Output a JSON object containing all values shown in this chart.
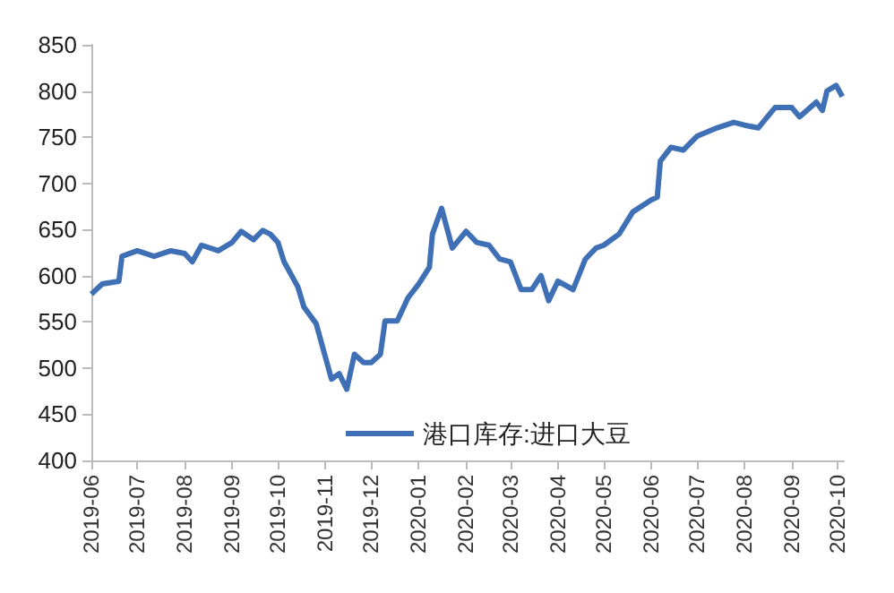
{
  "chart_data": {
    "type": "line",
    "x": [
      "2019-06-01",
      "2019-06-08",
      "2019-06-19",
      "2019-06-21",
      "2019-07-01",
      "2019-07-12",
      "2019-07-23",
      "2019-08-01",
      "2019-08-06",
      "2019-08-12",
      "2019-08-23",
      "2019-09-01",
      "2019-09-07",
      "2019-09-15",
      "2019-09-21",
      "2019-09-26",
      "2019-10-01",
      "2019-10-05",
      "2019-10-11",
      "2019-10-14",
      "2019-10-18",
      "2019-10-26",
      "2019-11-01",
      "2019-11-05",
      "2019-11-10",
      "2019-11-15",
      "2019-11-20",
      "2019-11-26",
      "2019-12-01",
      "2019-12-07",
      "2019-12-10",
      "2019-12-18",
      "2019-12-25",
      "2020-01-01",
      "2020-01-08",
      "2020-01-10",
      "2020-01-16",
      "2020-01-23",
      "2020-02-01",
      "2020-02-08",
      "2020-02-16",
      "2020-02-23",
      "2020-03-01",
      "2020-03-08",
      "2020-03-15",
      "2020-03-21",
      "2020-03-26",
      "2020-04-01",
      "2020-04-11",
      "2020-04-19",
      "2020-04-26",
      "2020-05-01",
      "2020-05-11",
      "2020-05-20",
      "2020-06-01",
      "2020-06-05",
      "2020-06-07",
      "2020-06-14",
      "2020-06-22",
      "2020-07-01",
      "2020-07-14",
      "2020-07-25",
      "2020-08-01",
      "2020-08-10",
      "2020-08-21",
      "2020-09-01",
      "2020-09-06",
      "2020-09-17",
      "2020-09-21",
      "2020-09-24",
      "2020-09-30",
      "2020-10-04"
    ],
    "series": [
      {
        "name": "港口库存:进口大豆",
        "color": "#3f6fb5",
        "values": [
          580,
          591,
          594,
          621,
          627,
          621,
          627,
          624,
          615,
          633,
          627,
          636,
          648,
          639,
          649,
          645,
          636,
          615,
          597,
          588,
          566,
          548,
          512,
          488,
          494,
          477,
          515,
          506,
          506,
          515,
          551,
          551,
          576,
          591,
          609,
          645,
          673,
          630,
          648,
          636,
          633,
          618,
          615,
          585,
          585,
          600,
          573,
          594,
          585,
          618,
          630,
          633,
          645,
          669,
          682,
          685,
          724,
          739,
          736,
          751,
          760,
          766,
          763,
          760,
          782,
          782,
          772,
          788,
          779,
          800,
          806,
          794
        ]
      }
    ],
    "xlim": [
      "2019-06-01",
      "2020-10-05"
    ],
    "xticks": [
      {
        "value": "2019-06",
        "label": "2019-06"
      },
      {
        "value": "2019-07",
        "label": "2019-07"
      },
      {
        "value": "2019-08",
        "label": "2019-08"
      },
      {
        "value": "2019-09",
        "label": "2019-09"
      },
      {
        "value": "2019-10",
        "label": "2019-10"
      },
      {
        "value": "2019-11",
        "label": "2019-11"
      },
      {
        "value": "2019-12",
        "label": "2019-12"
      },
      {
        "value": "2020-01",
        "label": "2020-01"
      },
      {
        "value": "2020-02",
        "label": "2020-02"
      },
      {
        "value": "2020-03",
        "label": "2020-03"
      },
      {
        "value": "2020-04",
        "label": "2020-04"
      },
      {
        "value": "2020-05",
        "label": "2020-05"
      },
      {
        "value": "2020-06",
        "label": "2020-06"
      },
      {
        "value": "2020-07",
        "label": "2020-07"
      },
      {
        "value": "2020-08",
        "label": "2020-08"
      },
      {
        "value": "2020-09",
        "label": "2020-09"
      },
      {
        "value": "2020-10",
        "label": "2020-10"
      }
    ],
    "ylim": [
      400,
      850
    ],
    "yticks": [
      400,
      450,
      500,
      550,
      600,
      650,
      700,
      750,
      800,
      850
    ],
    "grid": false,
    "legend": "bottom",
    "marker": "none",
    "line_style": "solid"
  }
}
